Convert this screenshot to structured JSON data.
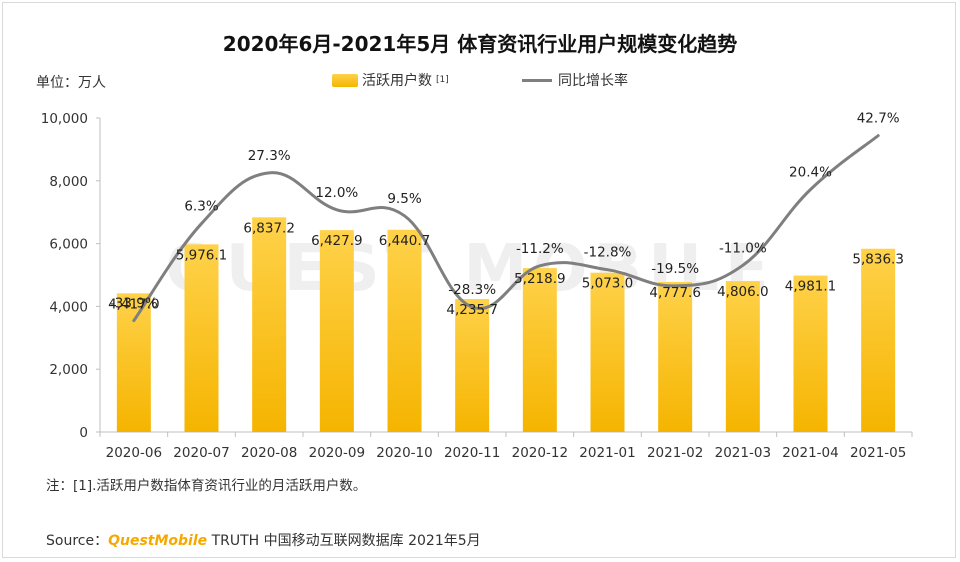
{
  "title": "2020年6月-2021年5月 体育资讯行业用户规模变化趋势",
  "unit_label": "单位：万人",
  "legend": {
    "bar_label": "活跃用户数",
    "bar_footnote": "[1]",
    "line_label": "同比增长率"
  },
  "note": "注：[1].活跃用户数指体育资讯行业的月活跃用户数。",
  "source": {
    "prefix": "Source：",
    "brand": "QuestMobile",
    "rest": " TRUTH 中国移动互联网数据库 2021年5月"
  },
  "watermark": "QUEST MOBILE",
  "colors": {
    "bar_top": "#ffd24a",
    "bar_bottom": "#f5b400",
    "line": "#7f7f7f"
  },
  "chart_data": {
    "type": "bar",
    "title": "2020年6月-2021年5月 体育资讯行业用户规模变化趋势",
    "categories": [
      "2020-06",
      "2020-07",
      "2020-08",
      "2020-09",
      "2020-10",
      "2020-11",
      "2020-12",
      "2021-01",
      "2021-02",
      "2021-03",
      "2021-04",
      "2021-05"
    ],
    "series": [
      {
        "name": "活跃用户数",
        "type": "bar",
        "values": [
          4417.0,
          5976.1,
          6837.2,
          6427.9,
          6440.7,
          4235.7,
          5218.9,
          5073.0,
          4777.6,
          4806.0,
          4981.1,
          5836.3
        ],
        "labels": [
          "4,417.0",
          "5,976.1",
          "6,837.2",
          "6,427.9",
          "6,440.7",
          "4,235.7",
          "5,218.9",
          "5,073.0",
          "4,777.6",
          "4,806.0",
          "4,981.1",
          "5,836.3"
        ]
      },
      {
        "name": "同比增长率",
        "type": "line",
        "values": [
          -33.9,
          6.3,
          27.3,
          12.0,
          9.5,
          -28.3,
          -11.2,
          -12.8,
          -19.5,
          -11.0,
          20.4,
          42.7
        ],
        "labels": [
          "-33.9%",
          "6.3%",
          "27.3%",
          "12.0%",
          "9.5%",
          "-28.3%",
          "-11.2%",
          "-12.8%",
          "-19.5%",
          "-11.0%",
          "20.4%",
          "42.7%"
        ]
      }
    ],
    "ylim": [
      0,
      10000
    ],
    "yticks": [
      0,
      2000,
      4000,
      6000,
      8000,
      10000
    ],
    "ytick_labels": [
      "0",
      "2,000",
      "4,000",
      "6,000",
      "8,000",
      "10,000"
    ],
    "grid": false,
    "legend_position": "top"
  }
}
